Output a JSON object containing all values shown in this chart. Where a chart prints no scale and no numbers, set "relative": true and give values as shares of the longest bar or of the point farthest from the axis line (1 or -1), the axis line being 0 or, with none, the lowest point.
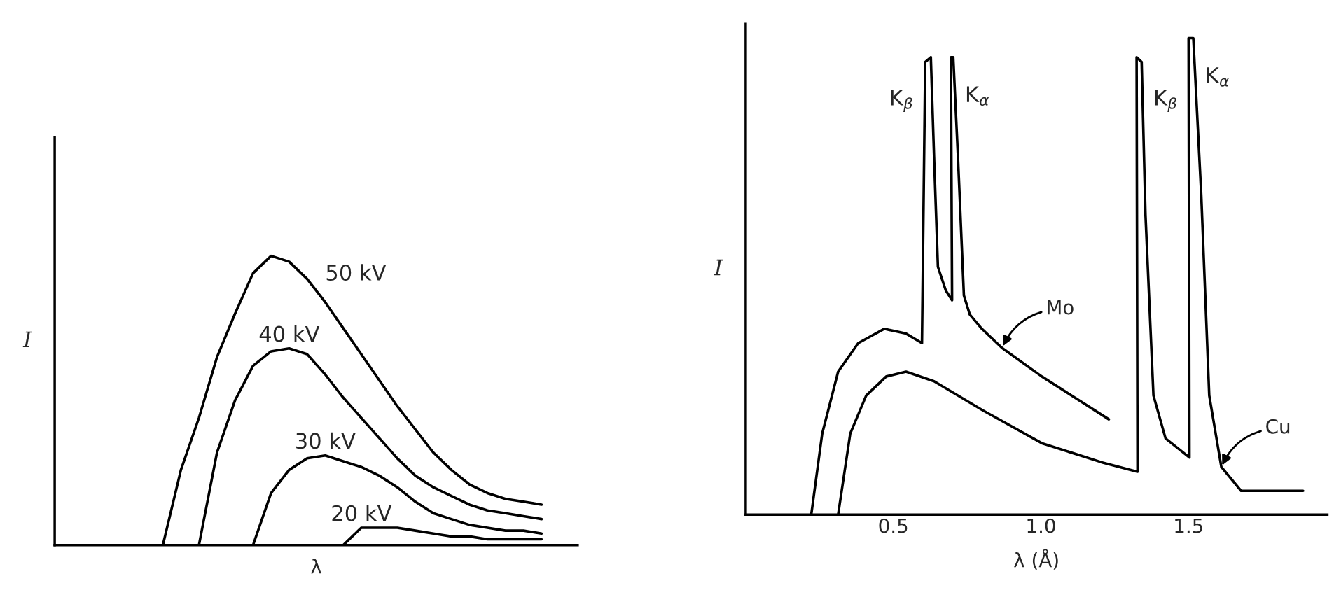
{
  "chart_data": [
    {
      "type": "line",
      "relative": true,
      "xlabel": "λ",
      "ylabel": "I",
      "grid": false,
      "legend": false,
      "tick_labels": false,
      "categories": [
        null,
        null,
        null,
        null,
        null,
        null,
        null,
        null,
        null,
        null,
        null,
        null,
        null,
        null,
        null,
        null,
        null,
        null,
        null,
        null,
        null,
        null,
        null,
        null,
        null,
        null,
        null,
        null,
        null,
        null
      ],
      "series": [
        {
          "name": "50 kV",
          "color": "#000000",
          "values": [
            null,
            null,
            null,
            null,
            null,
            null,
            0,
            0.26,
            0.44,
            0.65,
            0.8,
            0.94,
            1.0,
            0.98,
            0.92,
            0.84,
            0.75,
            0.66,
            0.57,
            0.48,
            0.4,
            0.32,
            0.26,
            0.21,
            0.18,
            0.16,
            0.15,
            0.14,
            null,
            null
          ]
        },
        {
          "name": "40 kV",
          "color": "#000000",
          "values": [
            null,
            null,
            null,
            null,
            null,
            null,
            null,
            null,
            0,
            0.32,
            0.5,
            0.62,
            0.67,
            0.68,
            0.66,
            0.59,
            0.51,
            0.44,
            0.37,
            0.3,
            0.24,
            0.2,
            0.17,
            0.14,
            0.12,
            0.11,
            0.1,
            0.09,
            null,
            null
          ]
        },
        {
          "name": "30 kV",
          "color": "#000000",
          "values": [
            null,
            null,
            null,
            null,
            null,
            null,
            null,
            null,
            null,
            null,
            null,
            0,
            0.18,
            0.26,
            0.3,
            0.31,
            0.29,
            0.27,
            0.24,
            0.2,
            0.15,
            0.11,
            0.09,
            0.07,
            0.06,
            0.05,
            0.05,
            0.04,
            null,
            null
          ]
        },
        {
          "name": "20 kV",
          "color": "#000000",
          "values": [
            null,
            null,
            null,
            null,
            null,
            null,
            null,
            null,
            null,
            null,
            null,
            null,
            null,
            null,
            null,
            null,
            0,
            0.06,
            0.06,
            0.06,
            0.05,
            0.04,
            0.03,
            0.03,
            0.02,
            0.02,
            0.02,
            0.02,
            null,
            null
          ]
        }
      ]
    },
    {
      "type": "line",
      "relative": true,
      "xlabel": "λ (Å)",
      "ylabel": "I",
      "grid": false,
      "legend": false,
      "tick_labels": "x",
      "xlim": [
        0,
        1.97
      ],
      "xticks": [
        {
          "value": 0.5,
          "label": "0.5"
        },
        {
          "value": 1.0,
          "label": "1.0"
        },
        {
          "value": 1.5,
          "label": "1.5"
        }
      ],
      "series": [
        {
          "name": "Mo",
          "color": "#000000",
          "x": [
            0.222,
            0.259,
            0.313,
            0.381,
            0.469,
            0.543,
            0.597,
            0.608,
            0.627,
            0.638,
            0.651,
            0.678,
            0.699,
            0.695,
            0.703,
            0.719,
            0.739,
            0.759,
            0.8,
            0.868,
            1.003,
            1.23
          ],
          "values": [
            0,
            0.17,
            0.3,
            0.36,
            0.39,
            0.38,
            0.36,
            0.95,
            0.96,
            0.75,
            0.52,
            0.47,
            0.45,
            0.96,
            0.96,
            0.75,
            0.46,
            0.42,
            0.39,
            0.35,
            0.29,
            0.2
          ]
        },
        {
          "name": "Cu",
          "color": "#000000",
          "x": [
            0.313,
            0.354,
            0.408,
            0.476,
            0.543,
            0.638,
            0.8,
            1.003,
            1.205,
            1.327,
            1.324,
            1.341,
            1.354,
            1.381,
            1.422,
            1.503,
            1.5,
            1.516,
            1.543,
            1.57,
            1.611,
            1.678,
            1.888
          ],
          "values": [
            0,
            0.17,
            0.25,
            0.29,
            0.3,
            0.28,
            0.22,
            0.15,
            0.11,
            0.09,
            0.96,
            0.95,
            0.63,
            0.25,
            0.16,
            0.12,
            1.0,
            1.0,
            0.67,
            0.25,
            0.1,
            0.05,
            0.05
          ]
        }
      ],
      "annotations": [
        {
          "text": "K$_{β}$",
          "x": 0.608,
          "y": 0.95
        },
        {
          "text": "K$_{α}$",
          "x": 0.703,
          "y": 0.96
        },
        {
          "text": "K$_{β}$",
          "x": 1.341,
          "y": 0.95
        },
        {
          "text": "K$_{α}$",
          "x": 1.516,
          "y": 1.0
        }
      ]
    }
  ]
}
